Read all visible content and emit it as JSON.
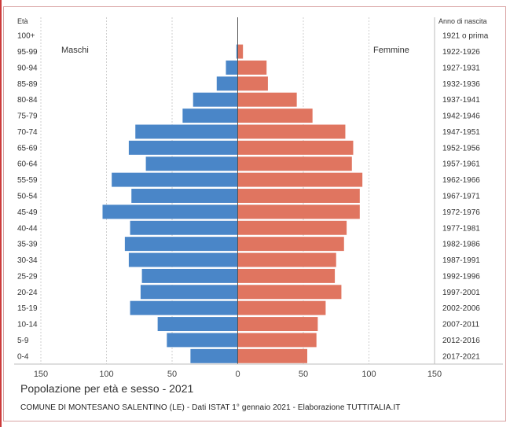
{
  "chart_data": {
    "type": "bar",
    "title": "Popolazione per età e sesso - 2021",
    "subtitle": "COMUNE DI MONTESANO SALENTINO (LE) - Dati ISTAT 1° gennaio 2021 - Elaborazione TUTTITALIA.IT",
    "left_header": "Età",
    "right_header": "Anno di nascita",
    "male_label": "Maschi",
    "female_label": "Femmine",
    "xlim": [
      -150,
      150
    ],
    "x_ticks": [
      "150",
      "100",
      "50",
      "0",
      "50",
      "100",
      "150"
    ],
    "x_tick_values": [
      -150,
      -100,
      -50,
      0,
      50,
      100,
      150
    ],
    "categories": [
      "100+",
      "95-99",
      "90-94",
      "85-89",
      "80-84",
      "75-79",
      "70-74",
      "65-69",
      "60-64",
      "55-59",
      "50-54",
      "45-49",
      "40-44",
      "35-39",
      "30-34",
      "25-29",
      "20-24",
      "15-19",
      "10-14",
      "5-9",
      "0-4"
    ],
    "birth_years": [
      "1921 o prima",
      "1922-1926",
      "1927-1931",
      "1932-1936",
      "1937-1941",
      "1942-1946",
      "1947-1951",
      "1952-1956",
      "1957-1961",
      "1962-1966",
      "1967-1971",
      "1972-1976",
      "1977-1981",
      "1982-1986",
      "1987-1991",
      "1992-1996",
      "1997-2001",
      "2002-2006",
      "2007-2011",
      "2012-2016",
      "2017-2021"
    ],
    "series": [
      {
        "name": "Maschi",
        "color": "#4a86c8",
        "values": [
          0,
          1,
          9,
          16,
          34,
          42,
          78,
          83,
          70,
          96,
          81,
          103,
          82,
          86,
          83,
          73,
          74,
          82,
          61,
          54,
          36
        ]
      },
      {
        "name": "Femmine",
        "color": "#e07560",
        "values": [
          0,
          4,
          22,
          23,
          45,
          57,
          82,
          88,
          87,
          95,
          93,
          93,
          83,
          81,
          75,
          74,
          79,
          67,
          61,
          60,
          53
        ]
      }
    ],
    "grid": true
  }
}
